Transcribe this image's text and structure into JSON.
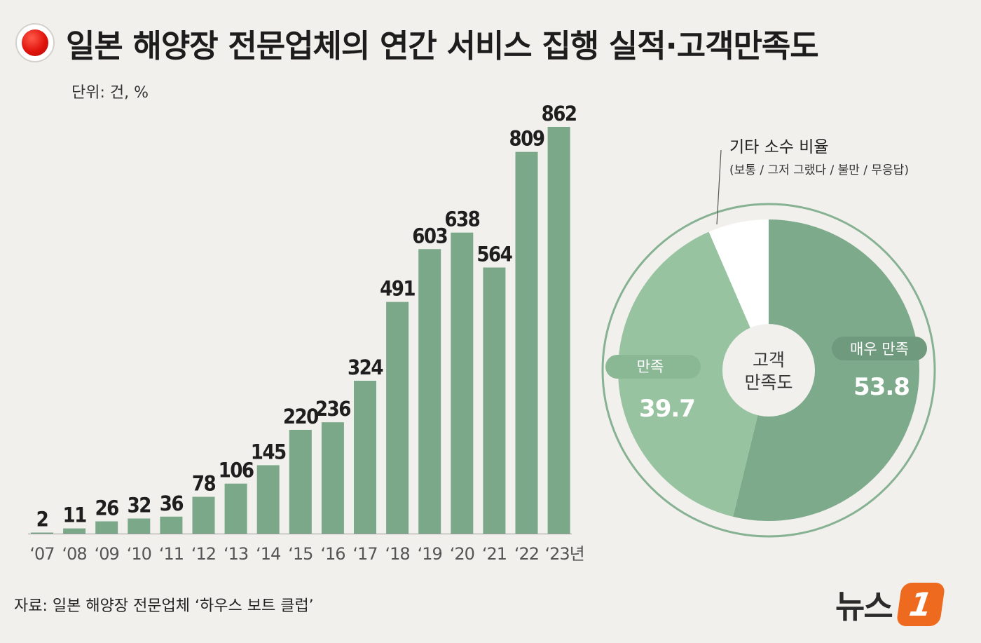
{
  "title": "일본 해양장 전문업체의 연간 서비스 집행 실적·고객만족도",
  "unit_label": "단위: 건, %",
  "source": "자료: 일본 해양장 전문업체 ‘하우스 보트 클럽’",
  "logo_text": "뉴스",
  "logo_mark": "1",
  "colors": {
    "bar": "#7aa889",
    "very_satisfied": "#7eaa8c",
    "satisfied": "#98c3a0",
    "other": "#ffffff",
    "ring": "#86b293",
    "title_dot": "#e0140c",
    "logo_orange": "#ee6a1f"
  },
  "chart_data": [
    {
      "type": "bar",
      "categories": [
        "‘07",
        "‘08",
        "‘09",
        "‘10",
        "‘11",
        "‘12",
        "‘13",
        "‘14",
        "‘15",
        "‘16",
        "‘17",
        "‘18",
        "‘19",
        "‘20",
        "‘21",
        "‘22",
        "‘23년"
      ],
      "values": [
        2,
        11,
        26,
        32,
        36,
        78,
        106,
        145,
        220,
        236,
        324,
        491,
        603,
        638,
        564,
        809,
        862
      ],
      "unit": "건",
      "ylim": [
        0,
        862
      ],
      "grid": false,
      "axis_labels_printed": false
    },
    {
      "type": "pie",
      "style": "donut",
      "center_label": "고객\n만족도",
      "slices": [
        {
          "label": "매우 만족",
          "value": 53.8,
          "value_label": "53.8"
        },
        {
          "label": "만족",
          "value": 39.7,
          "value_label": "39.7"
        },
        {
          "label": "기타 소수 비율",
          "sublabel": "(보통 / 그저 그랬다 / 불만 / 무응답)",
          "value": 6.5
        }
      ]
    }
  ]
}
